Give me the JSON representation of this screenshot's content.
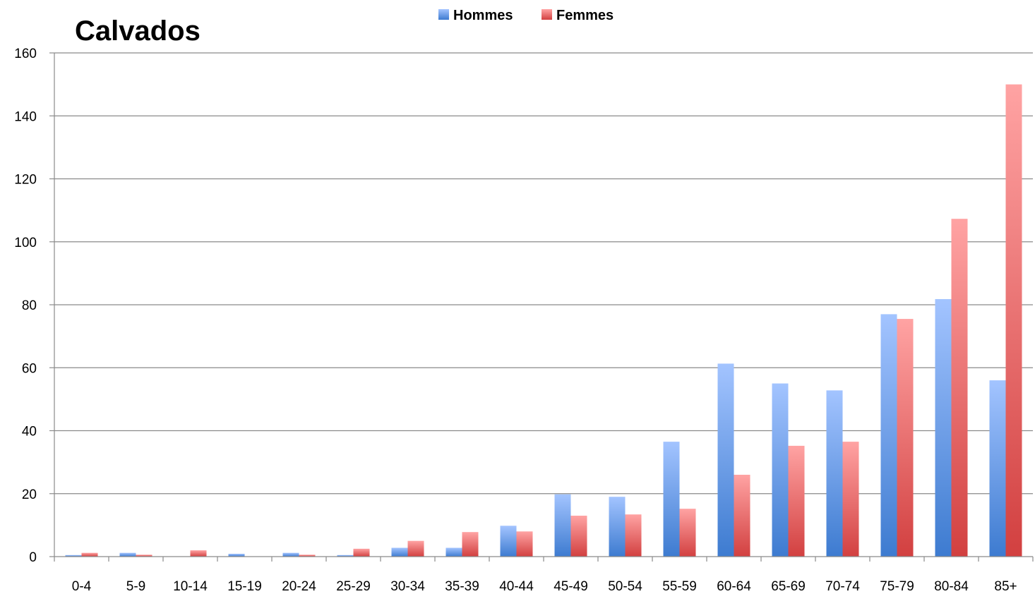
{
  "chart_data": {
    "type": "bar",
    "title": "Calvados",
    "xlabel": "",
    "ylabel": "",
    "ylim": [
      0,
      160
    ],
    "yticks": [
      0,
      20,
      40,
      60,
      80,
      100,
      120,
      140,
      160
    ],
    "grid": true,
    "legend_position": "top-center",
    "categories": [
      "0-4",
      "5-9",
      "10-14",
      "15-19",
      "20-24",
      "25-29",
      "30-34",
      "35-39",
      "40-44",
      "45-49",
      "50-54",
      "55-59",
      "60-64",
      "65-69",
      "70-74",
      "75-79",
      "80-84",
      "85+"
    ],
    "series": [
      {
        "name": "Hommes",
        "color": "#4f86d8",
        "values": [
          0.5,
          1.2,
          0,
          0.9,
          1.2,
          0.5,
          2.8,
          2.8,
          9.8,
          19.8,
          19.0,
          36.5,
          61.3,
          55.0,
          52.8,
          77.0,
          81.8,
          56.0
        ]
      },
      {
        "name": "Femmes",
        "color": "#e05252",
        "values": [
          1.2,
          0.6,
          2.0,
          0,
          0.6,
          2.5,
          5.0,
          7.8,
          8.0,
          13.0,
          13.4,
          15.2,
          26.0,
          35.2,
          36.5,
          75.5,
          107.3,
          150.0
        ]
      }
    ]
  }
}
